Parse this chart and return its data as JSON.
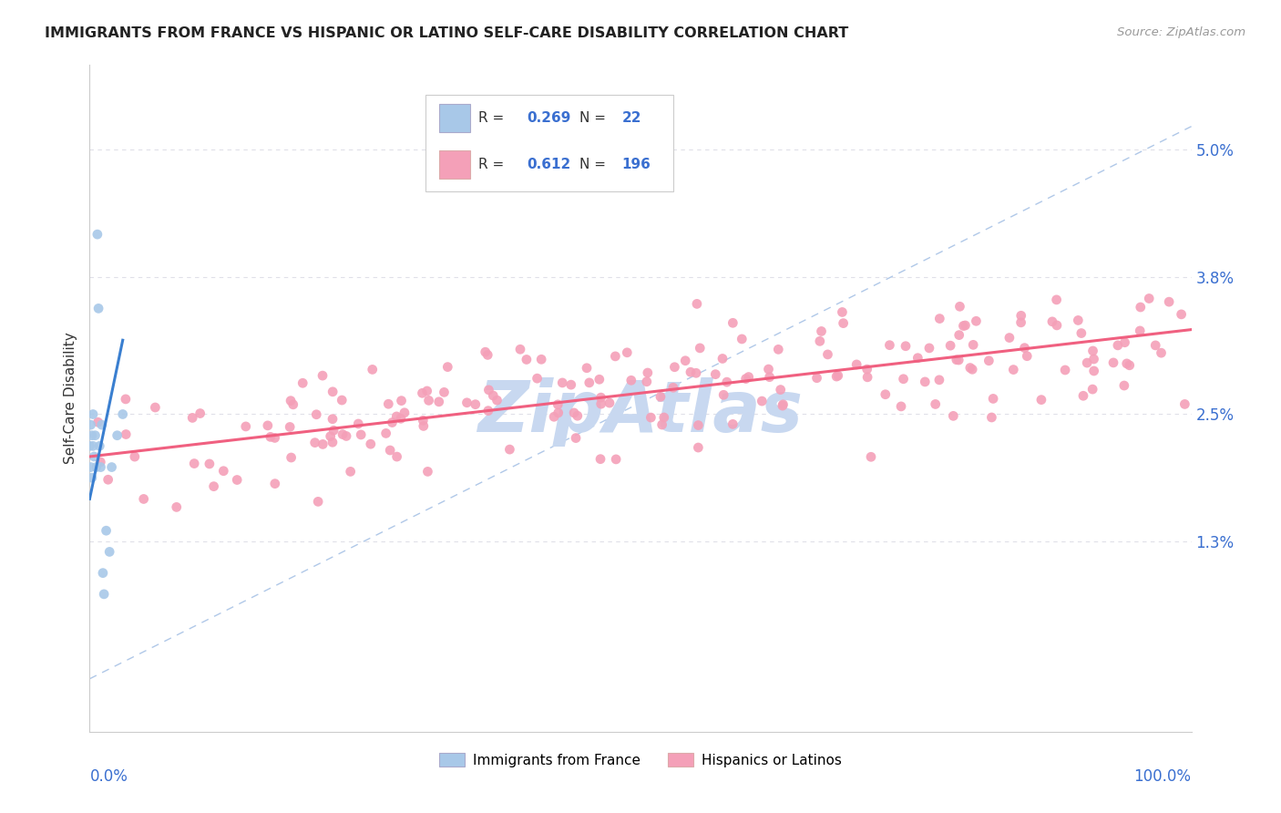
{
  "title": "IMMIGRANTS FROM FRANCE VS HISPANIC OR LATINO SELF-CARE DISABILITY CORRELATION CHART",
  "source": "Source: ZipAtlas.com",
  "ylabel": "Self-Care Disability",
  "ytick_labels": [
    "1.3%",
    "2.5%",
    "3.8%",
    "5.0%"
  ],
  "ytick_values": [
    0.013,
    0.025,
    0.038,
    0.05
  ],
  "xmin": 0.0,
  "xmax": 1.0,
  "ymin": -0.005,
  "ymax": 0.058,
  "france_R": 0.269,
  "france_N": 22,
  "hispanic_R": 0.612,
  "hispanic_N": 196,
  "france_color": "#a8c8e8",
  "hispanic_color": "#f4a0b8",
  "france_line_color": "#3a7fd0",
  "hispanic_line_color": "#f06080",
  "legend_R_color": "#3a6fd0",
  "text_color": "#333333",
  "background_color": "#ffffff",
  "watermark_text": "ZipAtlas",
  "watermark_color": "#c8d8f0",
  "grid_color": "#e0e0e8",
  "spine_color": "#cccccc",
  "source_color": "#999999",
  "diag_line_color": "#b0c8e8",
  "france_seed": 12,
  "hispanic_seed": 7
}
